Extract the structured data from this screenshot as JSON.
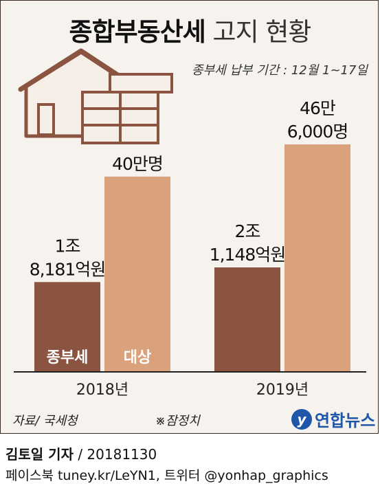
{
  "title_bold": "종합부동산세",
  "title_light": "고지 현황",
  "period": "종부세 납부 기간 : 12월 1~17일",
  "source": "자료/ 국세청",
  "note": "※잠정치",
  "logo": "연합뉴스",
  "logo_mark": "y",
  "reporter_name": "김토일 기자",
  "reporter_date": "/ 20181130",
  "sns": "페이스북 tuney.kr/LeYN1, 트위터 @yonhap_graphics",
  "colors": {
    "tax": "#8a5440",
    "target": "#d9a27d",
    "house": "#8a5440"
  },
  "chart_data": {
    "type": "bar",
    "categories": [
      "2018년",
      "2019년"
    ],
    "series": [
      {
        "name": "종부세",
        "unit": "억원",
        "values": [
          18181,
          21148
        ],
        "labels": [
          [
            "1조",
            "8,181억원"
          ],
          [
            "2조",
            "1,148억원"
          ]
        ]
      },
      {
        "name": "대상",
        "unit": "명",
        "values": [
          400000,
          466000
        ],
        "labels": [
          [
            "40만명"
          ],
          [
            "46만",
            "6,000명"
          ]
        ]
      }
    ],
    "grid": false,
    "legend": "inside-bars"
  }
}
